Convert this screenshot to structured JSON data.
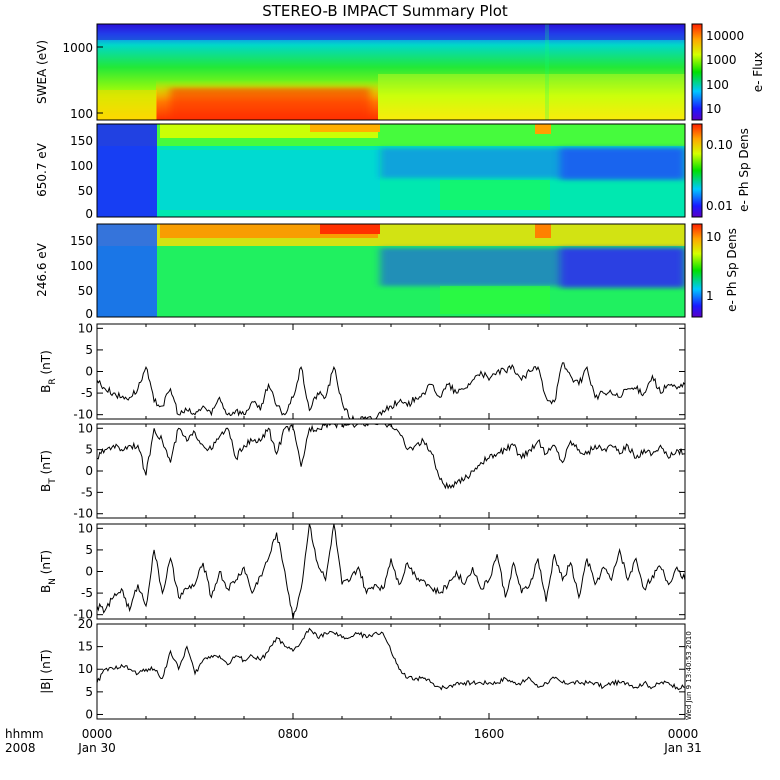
{
  "figure": {
    "title": "STEREO-B IMPACT Summary Plot",
    "stamp": "Wed Jun  9 13:40:53 2010",
    "x_axis": {
      "row1": {
        "label": "hhmm",
        "ticks": [
          "0000",
          "0800",
          "1600",
          "0000"
        ]
      },
      "row2": {
        "label": "2008",
        "ticks": [
          "Jan 30",
          "",
          "",
          "Jan 31"
        ]
      }
    }
  },
  "chart_data": [
    {
      "type": "heatmap",
      "name": "SWEA",
      "ylabel": "SWEA (eV)",
      "y_scale": "log",
      "ylim": [
        95,
        2000
      ],
      "yticks": [
        "100",
        "1000"
      ],
      "xlim_hours": [
        0,
        24
      ],
      "colorbar": {
        "label": "e- Flux",
        "scale": "log",
        "ticks": [
          "10",
          "100",
          "1000",
          "10000"
        ],
        "range": [
          5,
          30000
        ]
      },
      "description": "Energy spectrogram; highest flux (red) at low energies between ~0200 and ~1100, weaker and bluer after 1130."
    },
    {
      "type": "heatmap",
      "name": "PAD 650.7 eV",
      "ylabel": "650.7 eV",
      "ylim": [
        0,
        180
      ],
      "yticks": [
        "0",
        "50",
        "100",
        "150"
      ],
      "xlim_hours": [
        0,
        24
      ],
      "colorbar": {
        "label": "e- Ph Sp Dens",
        "scale": "log",
        "ticks": [
          "0.01",
          "0.10"
        ],
        "range": [
          0.005,
          0.25
        ]
      }
    },
    {
      "type": "heatmap",
      "name": "PAD 246.6 eV",
      "ylabel": "246.6 eV",
      "ylim": [
        0,
        180
      ],
      "yticks": [
        "0",
        "50",
        "100",
        "150"
      ],
      "xlim_hours": [
        0,
        24
      ],
      "colorbar": {
        "label": "e- Ph Sp Dens",
        "scale": "log",
        "ticks": [
          "1",
          "10"
        ],
        "range": [
          0.5,
          14
        ]
      }
    },
    {
      "type": "line",
      "name": "BR",
      "ylabel_main": "B",
      "ylabel_sub": "R",
      "ylabel_unit": "(nT)",
      "ylim": [
        -11,
        11
      ],
      "yticks": [
        "-10",
        "-5",
        "0",
        "5",
        "10"
      ],
      "x_hours": [
        0,
        0.33,
        0.67,
        1.0,
        1.33,
        1.67,
        2.0,
        2.33,
        2.67,
        3.0,
        3.33,
        3.67,
        4.0,
        4.33,
        4.67,
        5.0,
        5.33,
        5.67,
        6.0,
        6.33,
        6.67,
        7.0,
        7.33,
        7.67,
        8.0,
        8.33,
        8.67,
        9.0,
        9.33,
        9.67,
        10.0,
        10.33,
        10.67,
        11.0,
        11.33,
        11.67,
        12.0,
        12.33,
        12.67,
        13.0,
        13.33,
        13.67,
        14.0,
        14.33,
        14.67,
        15.0,
        15.33,
        15.67,
        16.0,
        16.33,
        16.67,
        17.0,
        17.33,
        17.67,
        18.0,
        18.33,
        18.67,
        19.0,
        19.33,
        19.67,
        20.0,
        20.33,
        20.67,
        21.0,
        21.33,
        21.67,
        22.0,
        22.33,
        22.67,
        23.0,
        23.33,
        23.67,
        24.0
      ],
      "values": [
        -2,
        -4,
        -5,
        -6,
        -6,
        -4,
        1,
        -7,
        -8,
        -4,
        -10,
        -9,
        -10,
        -8,
        -10,
        -6,
        -10,
        -9,
        -10,
        -7,
        -9,
        -3,
        -8,
        -10,
        -6,
        1,
        -9,
        -5,
        -6,
        1,
        -7,
        -11,
        -11,
        -11,
        -11,
        -9,
        -8,
        -7,
        -8,
        -6,
        -5,
        -3,
        -6,
        -3,
        -5,
        -4,
        -2,
        0,
        -2,
        0,
        0,
        1,
        -2,
        0,
        1,
        -6,
        -7,
        2,
        -1,
        -3,
        1,
        -6,
        -5,
        -5,
        -6,
        -4,
        -4,
        -5,
        -1,
        -5,
        -3,
        -4,
        -3
      ]
    },
    {
      "type": "line",
      "name": "BT",
      "ylabel_main": "B",
      "ylabel_sub": "T",
      "ylabel_unit": "(nT)",
      "ylim": [
        -11,
        11
      ],
      "yticks": [
        "-10",
        "-5",
        "0",
        "5",
        "10"
      ],
      "x_hours": [
        0,
        0.33,
        0.67,
        1.0,
        1.33,
        1.67,
        2.0,
        2.33,
        2.67,
        3.0,
        3.33,
        3.67,
        4.0,
        4.33,
        4.67,
        5.0,
        5.33,
        5.67,
        6.0,
        6.33,
        6.67,
        7.0,
        7.33,
        7.67,
        8.0,
        8.33,
        8.67,
        9.0,
        9.33,
        9.67,
        10.0,
        10.33,
        10.67,
        11.0,
        11.33,
        11.67,
        12.0,
        12.33,
        12.67,
        13.0,
        13.33,
        13.67,
        14.0,
        14.33,
        14.67,
        15.0,
        15.33,
        15.67,
        16.0,
        16.33,
        16.67,
        17.0,
        17.33,
        17.67,
        18.0,
        18.33,
        18.67,
        19.0,
        19.33,
        19.67,
        20.0,
        20.33,
        20.67,
        21.0,
        21.33,
        21.67,
        22.0,
        22.33,
        22.67,
        23.0,
        23.33,
        23.67,
        24.0
      ],
      "values": [
        3,
        5,
        6,
        5,
        6,
        6,
        -1,
        10,
        7,
        2,
        10,
        7,
        9,
        6,
        5,
        8,
        10,
        3,
        6,
        7,
        7,
        10,
        4,
        10,
        10,
        1,
        10,
        10,
        11,
        11,
        11,
        11,
        11,
        11,
        11,
        11,
        11,
        9,
        5,
        6,
        7,
        4,
        -2,
        -4,
        -3,
        -2,
        0,
        2,
        3,
        4,
        5,
        6,
        3,
        5,
        7,
        4,
        6,
        2,
        7,
        5,
        4,
        6,
        5,
        6,
        4,
        6,
        3,
        5,
        4,
        6,
        3,
        5,
        4
      ]
    },
    {
      "type": "line",
      "name": "BN",
      "ylabel_main": "B",
      "ylabel_sub": "N",
      "ylabel_unit": "(nT)",
      "ylim": [
        -11,
        11
      ],
      "yticks": [
        "-10",
        "-5",
        "0",
        "5",
        "10"
      ],
      "x_hours": [
        0,
        0.33,
        0.67,
        1.0,
        1.33,
        1.67,
        2.0,
        2.33,
        2.67,
        3.0,
        3.33,
        3.67,
        4.0,
        4.33,
        4.67,
        5.0,
        5.33,
        5.67,
        6.0,
        6.33,
        6.67,
        7.0,
        7.33,
        7.67,
        8.0,
        8.33,
        8.67,
        9.0,
        9.33,
        9.67,
        10.0,
        10.33,
        10.67,
        11.0,
        11.33,
        11.67,
        12.0,
        12.33,
        12.67,
        13.0,
        13.33,
        13.67,
        14.0,
        14.33,
        14.67,
        15.0,
        15.33,
        15.67,
        16.0,
        16.33,
        16.67,
        17.0,
        17.33,
        17.67,
        18.0,
        18.33,
        18.67,
        19.0,
        19.33,
        19.67,
        20.0,
        20.33,
        20.67,
        21.0,
        21.33,
        21.67,
        22.0,
        22.33,
        22.67,
        23.0,
        23.33,
        23.67,
        24.0
      ],
      "values": [
        -8,
        -9,
        -6,
        -4,
        -9,
        -3,
        -8,
        5,
        -5,
        3,
        -6,
        -4,
        -3,
        2,
        -6,
        0,
        -4,
        -2,
        1,
        -5,
        -1,
        3,
        9,
        0,
        -11,
        -4,
        11,
        2,
        -2,
        11,
        -3,
        -2,
        1,
        -5,
        -3,
        -4,
        3,
        -3,
        2,
        -1,
        -2,
        -4,
        -5,
        -3,
        0,
        -3,
        1,
        -4,
        -2,
        4,
        -6,
        2,
        -5,
        -3,
        3,
        -7,
        4,
        -2,
        2,
        -6,
        3,
        -3,
        1,
        -2,
        5,
        -2,
        3,
        -4,
        -1,
        1,
        -3,
        1,
        -2
      ]
    },
    {
      "type": "line",
      "name": "|B|",
      "ylabel_main": "|B|",
      "ylabel_unit": "(nT)",
      "ylim": [
        -1,
        20
      ],
      "yticks": [
        "0",
        "5",
        "10",
        "15",
        "20"
      ],
      "x_hours": [
        0,
        0.33,
        0.67,
        1.0,
        1.33,
        1.67,
        2.0,
        2.33,
        2.67,
        3.0,
        3.33,
        3.67,
        4.0,
        4.33,
        4.67,
        5.0,
        5.33,
        5.67,
        6.0,
        6.33,
        6.67,
        7.0,
        7.33,
        7.67,
        8.0,
        8.33,
        8.67,
        9.0,
        9.33,
        9.67,
        10.0,
        10.33,
        10.67,
        11.0,
        11.33,
        11.67,
        12.0,
        12.33,
        12.67,
        13.0,
        13.33,
        13.67,
        14.0,
        14.33,
        14.67,
        15.0,
        15.33,
        15.67,
        16.0,
        16.33,
        16.67,
        17.0,
        17.33,
        17.67,
        18.0,
        18.33,
        18.67,
        19.0,
        19.33,
        19.67,
        20.0,
        20.33,
        20.67,
        21.0,
        21.33,
        21.67,
        22.0,
        22.33,
        22.67,
        23.0,
        23.33,
        23.67,
        24.0
      ],
      "values": [
        7,
        10,
        10,
        11,
        10,
        9,
        10,
        10,
        8,
        14,
        10,
        15,
        9,
        12,
        13,
        13,
        11,
        13,
        12,
        13,
        12,
        14,
        17,
        15,
        14,
        16,
        19,
        17,
        18,
        18,
        17,
        17,
        18,
        17,
        18,
        18,
        14,
        10,
        8,
        8,
        8,
        7,
        6,
        6,
        7,
        7,
        7,
        7,
        7,
        7,
        8,
        7,
        7,
        8,
        6,
        7,
        8,
        7,
        7,
        7,
        7,
        7,
        6,
        7,
        7,
        7,
        6,
        7,
        6,
        7,
        7,
        6,
        6
      ]
    }
  ]
}
